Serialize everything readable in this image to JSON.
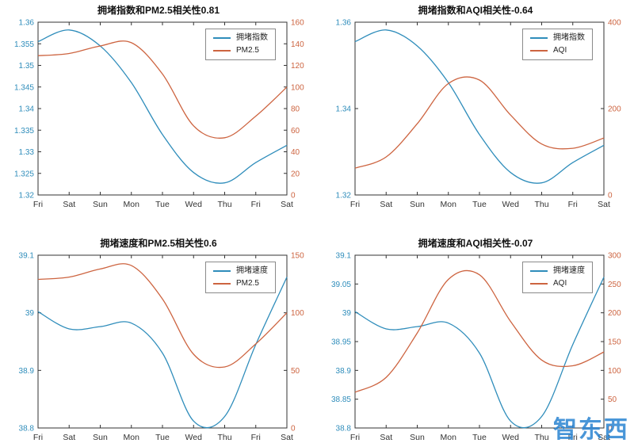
{
  "page": {
    "background": "#ffffff"
  },
  "watermark": {
    "text": "智东西",
    "color": "#2a84d2"
  },
  "colors": {
    "blue": "#2f8dbb",
    "orange": "#cd6440",
    "axis": "#333333",
    "x_label": "#333333"
  },
  "chart_data": [
    {
      "type": "line",
      "title": "拥堵指数和PM2.5相关性0.81",
      "categories": [
        "Fri",
        "Sat",
        "Sun",
        "Mon",
        "Tue",
        "Wed",
        "Thu",
        "Fri",
        "Sat"
      ],
      "legend_position": "top-right",
      "left_axis": {
        "range": [
          1.32,
          1.36
        ],
        "ticks": [
          1.36,
          1.355,
          1.35,
          1.345,
          1.34,
          1.335,
          1.33,
          1.325,
          1.32
        ],
        "color": "#2f8dbb"
      },
      "right_axis": {
        "range": [
          0,
          160
        ],
        "ticks": [
          160,
          140,
          120,
          100,
          80,
          60,
          40,
          20,
          0
        ],
        "color": "#cd6440"
      },
      "series": [
        {
          "name": "拥堵指数",
          "axis": "left",
          "color": "#2f8dbb",
          "values": [
            1.3555,
            1.3582,
            1.3545,
            1.346,
            1.334,
            1.3252,
            1.3228,
            1.3275,
            1.3315
          ]
        },
        {
          "name": "PM2.5",
          "axis": "right",
          "color": "#cd6440",
          "values": [
            129,
            131,
            138,
            141,
            112,
            64,
            53,
            73,
            100
          ]
        }
      ]
    },
    {
      "type": "line",
      "title": "拥堵指数和AQI相关性-0.64",
      "categories": [
        "Fri",
        "Sat",
        "Sun",
        "Mon",
        "Tue",
        "Wed",
        "Thu",
        "Fri",
        "Sat"
      ],
      "legend_position": "top-right",
      "left_axis": {
        "range": [
          1.32,
          1.36
        ],
        "ticks": [
          1.36,
          1.34,
          1.32
        ],
        "color": "#2f8dbb"
      },
      "right_axis": {
        "range": [
          0,
          400
        ],
        "ticks": [
          400,
          200,
          0
        ],
        "color": "#cd6440"
      },
      "series": [
        {
          "name": "拥堵指数",
          "axis": "left",
          "color": "#2f8dbb",
          "values": [
            1.3555,
            1.3582,
            1.3545,
            1.346,
            1.334,
            1.3252,
            1.3228,
            1.3275,
            1.3315
          ]
        },
        {
          "name": "AQI",
          "axis": "right",
          "color": "#cd6440",
          "values": [
            62,
            88,
            165,
            258,
            266,
            185,
            118,
            108,
            132
          ]
        }
      ]
    },
    {
      "type": "line",
      "title": "拥堵速度和PM2.5相关性0.6",
      "categories": [
        "Fri",
        "Sat",
        "Sun",
        "Mon",
        "Tue",
        "Wed",
        "Thu",
        "Fri",
        "Sat"
      ],
      "legend_position": "top-right",
      "left_axis": {
        "range": [
          38.8,
          39.1
        ],
        "ticks": [
          39.1,
          39,
          38.9,
          38.8
        ],
        "color": "#2f8dbb"
      },
      "right_axis": {
        "range": [
          0,
          150
        ],
        "ticks": [
          150,
          100,
          50,
          0
        ],
        "color": "#cd6440"
      },
      "series": [
        {
          "name": "拥堵速度",
          "axis": "left",
          "color": "#2f8dbb",
          "values": [
            39.002,
            38.972,
            38.976,
            38.982,
            38.93,
            38.812,
            38.82,
            38.945,
            39.062
          ]
        },
        {
          "name": "PM2.5",
          "axis": "right",
          "color": "#cd6440",
          "values": [
            129,
            131,
            138,
            141,
            112,
            64,
            53,
            73,
            100
          ]
        }
      ]
    },
    {
      "type": "line",
      "title": "拥堵速度和AQI相关性-0.07",
      "categories": [
        "Fri",
        "Sat",
        "Sun",
        "Mon",
        "Tue",
        "Wed",
        "Thu",
        "Fri",
        "Sat"
      ],
      "legend_position": "top-right",
      "left_axis": {
        "range": [
          38.8,
          39.1
        ],
        "ticks": [
          39.1,
          39.05,
          39,
          38.95,
          38.9,
          38.85,
          38.8
        ],
        "color": "#2f8dbb"
      },
      "right_axis": {
        "range": [
          0,
          300
        ],
        "ticks": [
          300,
          250,
          200,
          150,
          100,
          50,
          0
        ],
        "color": "#cd6440"
      },
      "series": [
        {
          "name": "拥堵速度",
          "axis": "left",
          "color": "#2f8dbb",
          "values": [
            39.002,
            38.972,
            38.976,
            38.982,
            38.93,
            38.812,
            38.82,
            38.945,
            39.062
          ]
        },
        {
          "name": "AQI",
          "axis": "right",
          "color": "#cd6440",
          "values": [
            62,
            88,
            165,
            258,
            266,
            185,
            118,
            108,
            132
          ]
        }
      ]
    }
  ]
}
